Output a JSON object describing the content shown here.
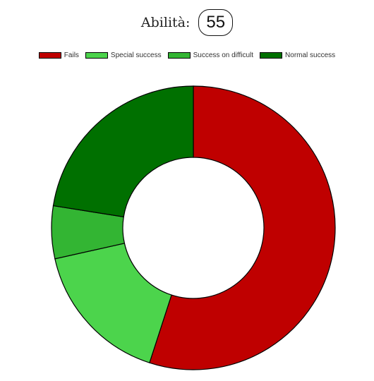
{
  "header": {
    "skill_label": "Abilità:",
    "skill_value": "55"
  },
  "chart_data": {
    "type": "pie",
    "donut": true,
    "legend_position": "top",
    "categories": [
      "Fails",
      "Special success",
      "Success on difficult",
      "Normal success"
    ],
    "values": [
      55,
      16.5,
      6,
      22.5
    ],
    "colors": [
      "#bf0000",
      "#4cd44c",
      "#33b533",
      "#007000"
    ]
  }
}
